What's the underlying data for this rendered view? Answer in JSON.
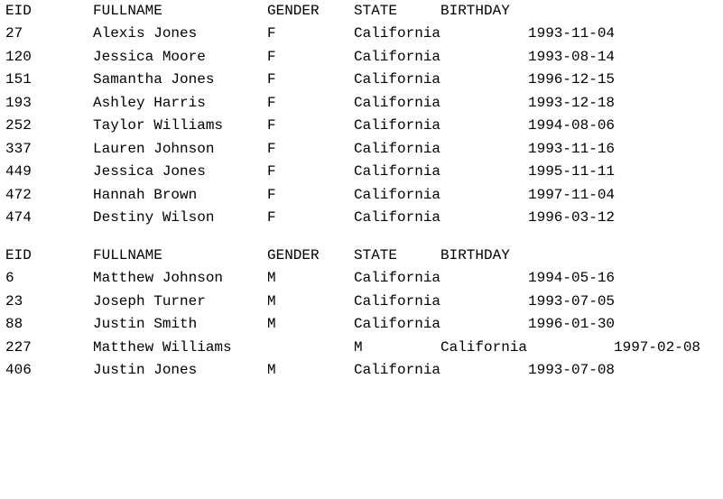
{
  "headers": {
    "eid": "EID",
    "fullname": "FULLNAME",
    "gender": "GENDER",
    "state": "STATE",
    "birthday": "BIRTHDAY"
  },
  "female": [
    {
      "eid": "27",
      "fullname": "Alexis Jones",
      "gender": "F",
      "state": "California",
      "birthday": "1993-11-04"
    },
    {
      "eid": "120",
      "fullname": "Jessica Moore",
      "gender": "F",
      "state": "California",
      "birthday": "1993-08-14"
    },
    {
      "eid": "151",
      "fullname": "Samantha Jones",
      "gender": "F",
      "state": "California",
      "birthday": "1996-12-15"
    },
    {
      "eid": "193",
      "fullname": "Ashley Harris",
      "gender": "F",
      "state": "California",
      "birthday": "1993-12-18"
    },
    {
      "eid": "252",
      "fullname": "Taylor Williams",
      "gender": "F",
      "state": "California",
      "birthday": "1994-08-06"
    },
    {
      "eid": "337",
      "fullname": "Lauren Johnson",
      "gender": "F",
      "state": "California",
      "birthday": "1993-11-16"
    },
    {
      "eid": "449",
      "fullname": "Jessica Jones",
      "gender": "F",
      "state": "California",
      "birthday": "1995-11-11"
    },
    {
      "eid": "472",
      "fullname": "Hannah Brown",
      "gender": "F",
      "state": "California",
      "birthday": "1997-11-04"
    },
    {
      "eid": "474",
      "fullname": "Destiny Wilson",
      "gender": "F",
      "state": "California",
      "birthday": "1996-03-12"
    }
  ],
  "male": [
    {
      "eid": "6",
      "fullname": "Matthew Johnson",
      "gender": "M",
      "state": "California",
      "birthday": "1994-05-16"
    },
    {
      "eid": "23",
      "fullname": "Joseph Turner",
      "gender": "M",
      "state": "California",
      "birthday": "1993-07-05"
    },
    {
      "eid": "88",
      "fullname": "Justin Smith",
      "gender": "M",
      "state": "California",
      "birthday": "1996-01-30"
    },
    {
      "eid": "227",
      "fullname": "Matthew Williams",
      "gender": "M",
      "state": "California",
      "birthday": "1997-02-08"
    },
    {
      "eid": "406",
      "fullname": "Justin Jones",
      "gender": "M",
      "state": "California",
      "birthday": "1993-07-08"
    }
  ]
}
